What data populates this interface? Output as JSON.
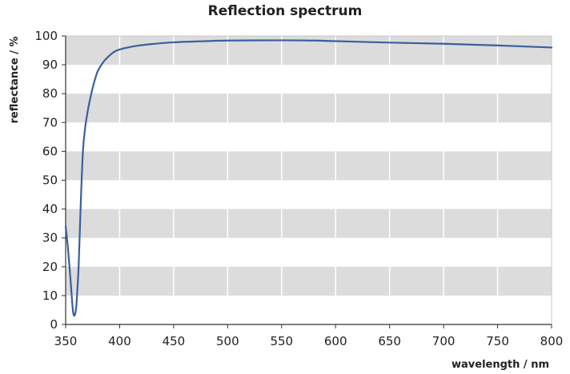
{
  "chart_data": {
    "type": "line",
    "title": "Reflection spectrum",
    "xlabel": "wavelength / nm",
    "ylabel": "reflectance / %",
    "xlim": [
      350,
      800
    ],
    "ylim": [
      0,
      100
    ],
    "x_ticks": [
      350,
      400,
      450,
      500,
      550,
      600,
      650,
      700,
      750,
      800
    ],
    "y_ticks": [
      0,
      10,
      20,
      30,
      40,
      50,
      60,
      70,
      80,
      90,
      100
    ],
    "grid": {
      "vertical_lines": true,
      "horizontal_bands": "alternating gray"
    },
    "colors": {
      "line": "#3a5f9e",
      "band": "#dcdcdc",
      "plot_background": "#ffffff",
      "axis": "#333333",
      "vgrid": "#ffffff"
    },
    "series": [
      {
        "x": [
          350,
          352,
          354,
          356,
          357,
          358,
          359,
          360,
          362,
          364,
          366,
          368,
          370,
          372,
          375,
          378,
          380,
          385,
          390,
          395,
          400,
          410,
          420,
          430,
          450,
          480,
          500,
          550,
          580,
          600,
          650,
          700,
          750,
          800
        ],
        "values": [
          34,
          27,
          18,
          8,
          4,
          3,
          4,
          7,
          20,
          42,
          60,
          68,
          73,
          77,
          82,
          86,
          88,
          91,
          93,
          94.5,
          95.3,
          96.2,
          96.8,
          97.2,
          97.8,
          98.2,
          98.4,
          98.5,
          98.4,
          98.2,
          97.7,
          97.3,
          96.7,
          96.0
        ]
      }
    ]
  }
}
